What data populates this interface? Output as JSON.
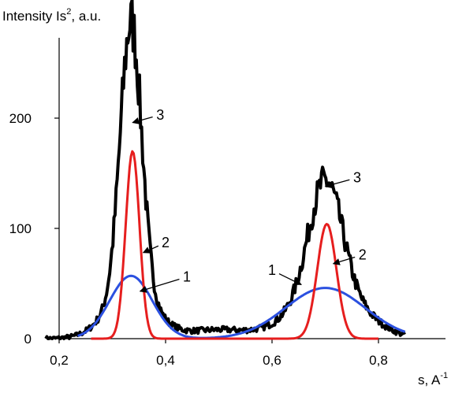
{
  "chart_data": {
    "type": "line",
    "ylabel_main": "Intensity Is",
    "ylabel_sup": "2",
    "ylabel_tail": ", a.u.",
    "xlabel_main": "s, A",
    "xlabel_sup": "-1",
    "xlim": [
      0.1,
      0.88
    ],
    "ylim": [
      0,
      250
    ],
    "xticks": [
      0.2,
      0.4,
      0.6,
      0.8
    ],
    "xtick_labels": [
      "0,2",
      "0,4",
      "0,6",
      "0,8"
    ],
    "yticks": [
      0,
      100,
      200
    ],
    "ytick_labels": [
      "0",
      "100",
      "200"
    ],
    "grid": false,
    "series": [
      {
        "name": "1",
        "color": "#2b50e0",
        "components": [
          {
            "center": 0.335,
            "height": 57,
            "sigma": 0.04
          },
          {
            "center": 0.7,
            "height": 46,
            "sigma": 0.075
          }
        ],
        "range": [
          0.235,
          0.85
        ]
      },
      {
        "name": "2",
        "color": "#e61e1e",
        "components": [
          {
            "center": 0.338,
            "height": 170,
            "sigma": 0.013
          },
          {
            "center": 0.703,
            "height": 104,
            "sigma": 0.018
          }
        ],
        "range": [
          0.26,
          0.8
        ]
      },
      {
        "name": "3",
        "color": "#000000",
        "components": [
          {
            "center": 0.335,
            "height": 245,
            "sigma": 0.02
          },
          {
            "center": 0.335,
            "height": 42,
            "sigma": 0.045
          },
          {
            "center": 0.7,
            "height": 115,
            "sigma": 0.032
          },
          {
            "center": 0.655,
            "height": 20,
            "sigma": 0.05
          },
          {
            "center": 0.75,
            "height": 25,
            "sigma": 0.05
          },
          {
            "center": 0.5,
            "height": 8,
            "sigma": 0.06
          }
        ],
        "range": [
          0.175,
          0.85
        ]
      }
    ],
    "annotations": [
      {
        "text": "3",
        "at": [
          0.338,
          196
        ],
        "label": [
          0.39,
          203
        ]
      },
      {
        "text": "2",
        "at": [
          0.358,
          78
        ],
        "label": [
          0.4,
          87
        ]
      },
      {
        "text": "1",
        "at": [
          0.352,
          43
        ],
        "label": [
          0.44,
          56
        ]
      },
      {
        "text": "3",
        "at": [
          0.7,
          138
        ],
        "label": [
          0.76,
          146
        ]
      },
      {
        "text": "2",
        "at": [
          0.715,
          68
        ],
        "label": [
          0.77,
          76
        ]
      },
      {
        "text": "1",
        "at": [
          0.655,
          49
        ],
        "label": [
          0.6,
          62
        ]
      }
    ]
  }
}
